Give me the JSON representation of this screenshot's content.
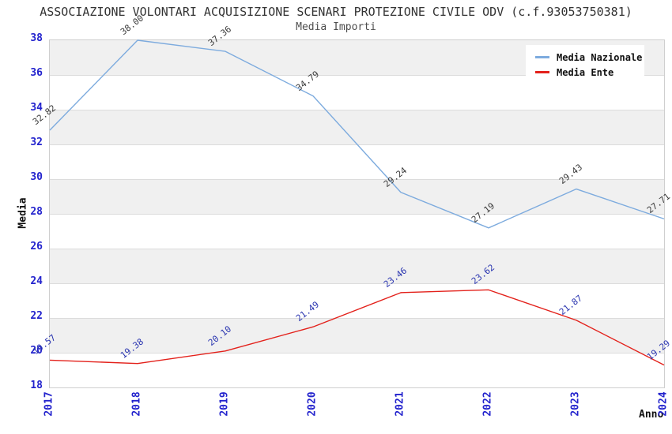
{
  "title": "ASSOCIAZIONE VOLONTARI ACQUISIZIONE SCENARI PROTEZIONE CIVILE ODV (c.f.93053750381)",
  "subtitle": "Media Importi",
  "chart_data": {
    "type": "line",
    "x": [
      "2017",
      "2018",
      "2019",
      "2020",
      "2021",
      "2022",
      "2023",
      "2024"
    ],
    "xlabel": "Anno",
    "ylabel": "Media",
    "ylim": [
      18,
      38
    ],
    "ytick_step": 2,
    "yticks": [
      38,
      36,
      34,
      32,
      30,
      28,
      26,
      24,
      22,
      20,
      18
    ],
    "grid": "alternating-horizontal-bands",
    "legend_position": "top-right",
    "point_label_decimals": 2,
    "series": [
      {
        "name": "Media Nazionale",
        "color": "#7dabde",
        "label_color": "#3a3a3a",
        "values": [
          32.82,
          38.0,
          37.36,
          34.79,
          29.24,
          27.19,
          29.43,
          27.71
        ]
      },
      {
        "name": "Media Ente",
        "color": "#e3211b",
        "label_color": "#2a35b0",
        "values": [
          19.57,
          19.38,
          20.1,
          21.49,
          23.46,
          23.62,
          21.87,
          19.29
        ]
      }
    ],
    "colors": {
      "band_fill": "#f0f0f0",
      "band_alt_fill": "#ffffff",
      "grid_line": "#dcdcdc",
      "plot_border": "#cfcfcf",
      "tick_label": "#2323cd"
    }
  }
}
